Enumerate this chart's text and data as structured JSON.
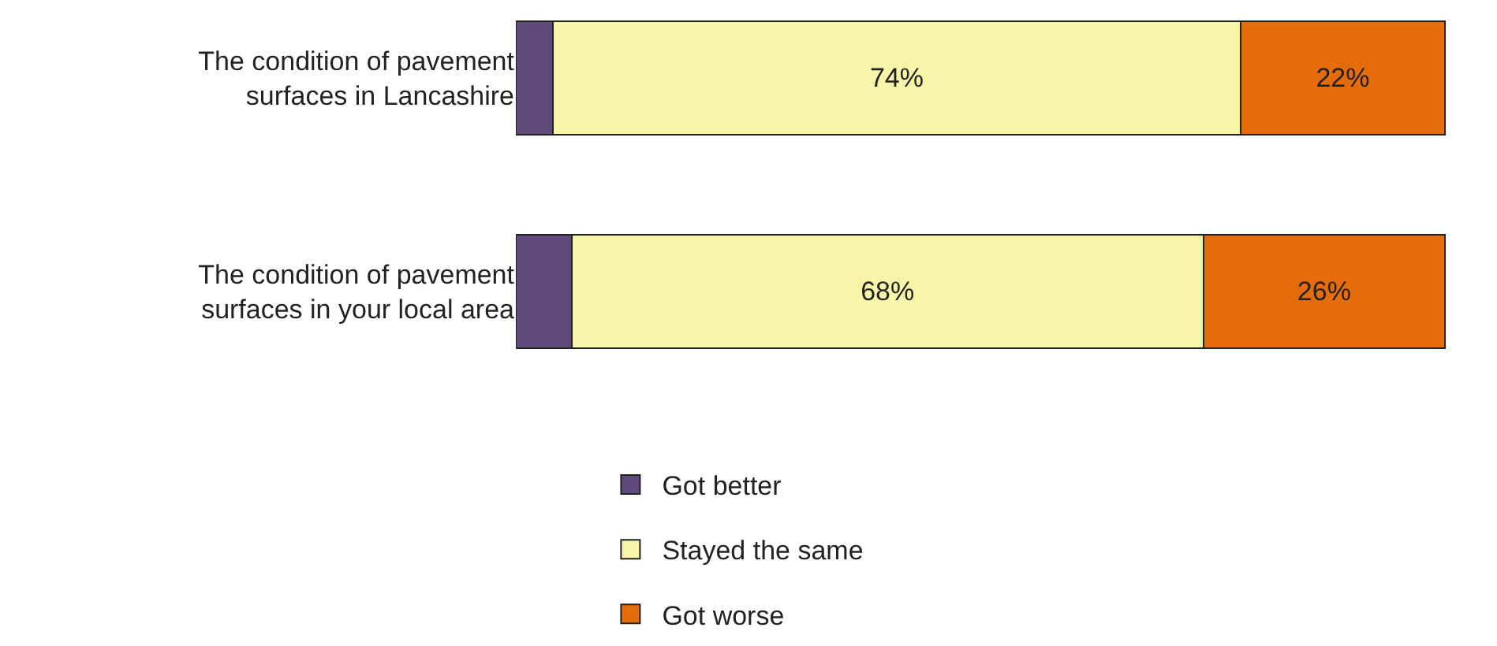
{
  "chart_data": {
    "type": "bar",
    "orientation": "horizontal",
    "stacked": true,
    "categories": [
      "The condition of pavement surfaces in Lancashire",
      "The condition of pavement surfaces in your local area"
    ],
    "series": [
      {
        "name": "Got better",
        "color": "#604a7b",
        "values": [
          4,
          6
        ],
        "value_labels": [
          null,
          null
        ]
      },
      {
        "name": "Stayed the same",
        "color": "#f7f5a8",
        "values": [
          74,
          68
        ],
        "value_labels": [
          "74%",
          "68%"
        ]
      },
      {
        "name": "Got worse",
        "color": "#e46c0a",
        "values": [
          22,
          26
        ],
        "value_labels": [
          "22%",
          "26%"
        ]
      }
    ],
    "legend": "bottom"
  }
}
